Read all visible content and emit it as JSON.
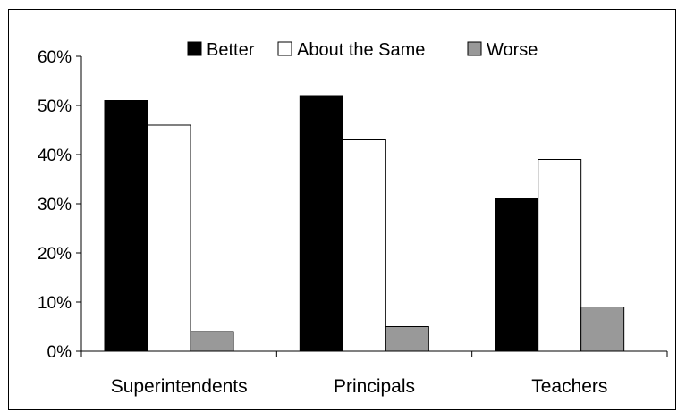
{
  "chart_data": {
    "type": "bar",
    "title": "",
    "xlabel": "",
    "ylabel": "",
    "categories": [
      "Superintendents",
      "Principals",
      "Teachers"
    ],
    "series": [
      {
        "name": "Better",
        "values": [
          51,
          52,
          31
        ],
        "color": "#000000"
      },
      {
        "name": "About the Same",
        "values": [
          46,
          43,
          39
        ],
        "color": "#ffffff"
      },
      {
        "name": "Worse",
        "values": [
          4,
          5,
          9
        ],
        "color": "#999999"
      }
    ],
    "ylim": [
      0,
      60
    ],
    "yticks": [
      "0%",
      "10%",
      "20%",
      "30%",
      "40%",
      "50%",
      "60%"
    ],
    "grid": false,
    "legend_position": "top"
  }
}
